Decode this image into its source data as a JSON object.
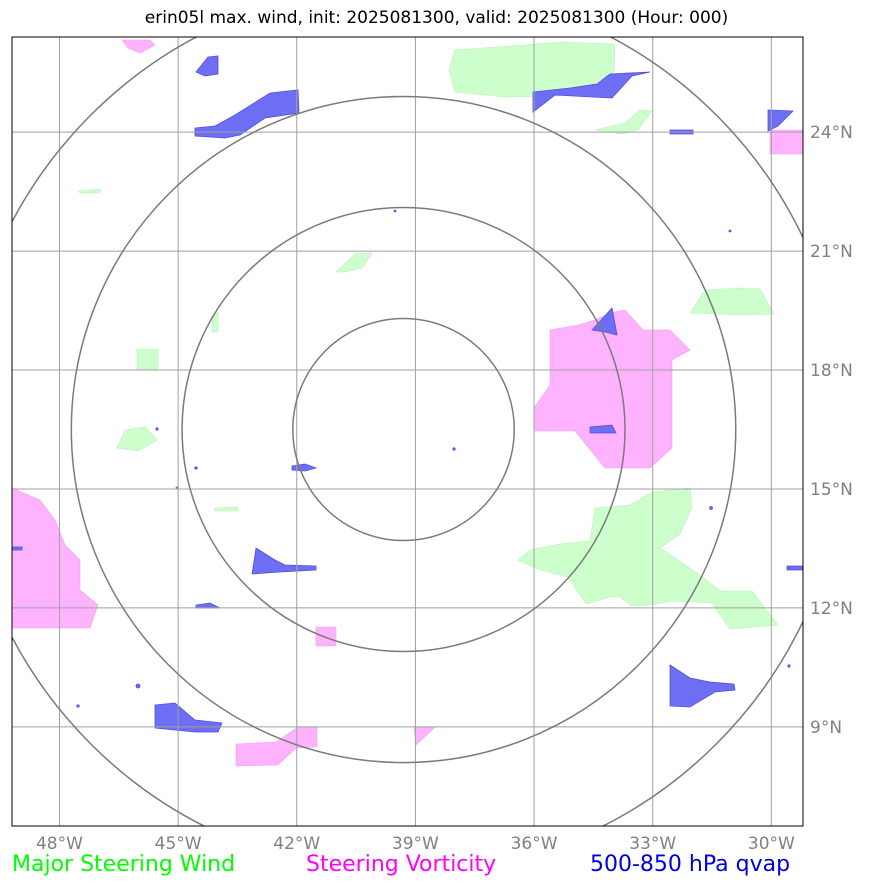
{
  "title": "erin05l max. wind, init: 2025081300, valid: 2025081300 (Hour: 000)",
  "map": {
    "lon_ticks": [
      {
        "lon": -48,
        "label": "48°W"
      },
      {
        "lon": -45,
        "label": "45°W"
      },
      {
        "lon": -42,
        "label": "42°W"
      },
      {
        "lon": -39,
        "label": "39°W"
      },
      {
        "lon": -36,
        "label": "36°W"
      },
      {
        "lon": -33,
        "label": "33°W"
      },
      {
        "lon": -30,
        "label": "30°W"
      }
    ],
    "lat_ticks": [
      {
        "lat": 24,
        "label": "24°N"
      },
      {
        "lat": 21,
        "label": "21°N"
      },
      {
        "lat": 18,
        "label": "18°N"
      },
      {
        "lat": 15,
        "label": "15°N"
      },
      {
        "lat": 12,
        "label": "12°N"
      },
      {
        "lat": 9,
        "label": "9°N"
      }
    ],
    "extent": {
      "lon_min": -49.2,
      "lon_max": -29.2,
      "lat_min": 6.5,
      "lat_max": 26.4
    },
    "storm_center": {
      "lon": -39.3,
      "lat": 16.5
    },
    "range_ring_radii_deg": [
      2.8,
      5.6,
      8.4,
      11.2
    ],
    "colors": {
      "wind": "#ccffcc",
      "vorticity": "#ffb3ff",
      "qvap": "#6e6ef5"
    }
  },
  "legend": {
    "wind": {
      "label": "Major Steering Wind",
      "color": "#00ff00"
    },
    "vorticity": {
      "label": "Steering Vorticity",
      "color": "#ff00ff"
    },
    "qvap": {
      "label": "500-850 hPa qvap",
      "color": "#0000dd"
    }
  }
}
